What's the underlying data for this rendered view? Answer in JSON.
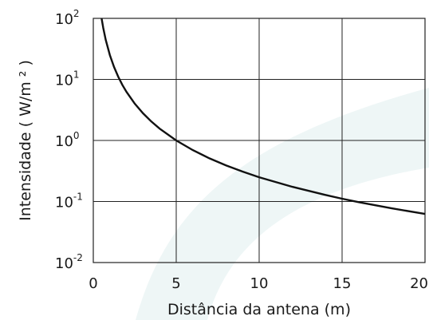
{
  "chart_data": {
    "type": "line",
    "title": "",
    "xlabel": "Distância da antena (m)",
    "ylabel": "Intensidade ( W/m ² )",
    "y_scale": "log",
    "xlim": [
      0,
      20
    ],
    "ylim": [
      0.01,
      100
    ],
    "grid": true,
    "x_ticks": [
      "0",
      "5",
      "10",
      "15",
      "20"
    ],
    "y_ticks": [
      {
        "base": "10",
        "exp": "2"
      },
      {
        "base": "10",
        "exp": "1"
      },
      {
        "base": "10",
        "exp": "0"
      },
      {
        "base": "10",
        "exp": "-1"
      },
      {
        "base": "10",
        "exp": "-2"
      }
    ],
    "series": [
      {
        "x": [
          0.5,
          0.6,
          0.75,
          1,
          1.25,
          1.5,
          1.75,
          2,
          2.5,
          3,
          3.5,
          4,
          5,
          6,
          7,
          8,
          9,
          10,
          12,
          14,
          15,
          16,
          18,
          20
        ],
        "y": [
          100,
          69.4,
          44.4,
          25,
          16,
          11.1,
          8.16,
          6.25,
          4,
          2.78,
          2.04,
          1.56,
          1,
          0.694,
          0.51,
          0.391,
          0.309,
          0.25,
          0.174,
          0.128,
          0.111,
          0.0977,
          0.0772,
          0.0625
        ]
      }
    ]
  },
  "colors": {
    "line": "#111111",
    "grid": "#222222",
    "watermark": "#eef6f6"
  }
}
